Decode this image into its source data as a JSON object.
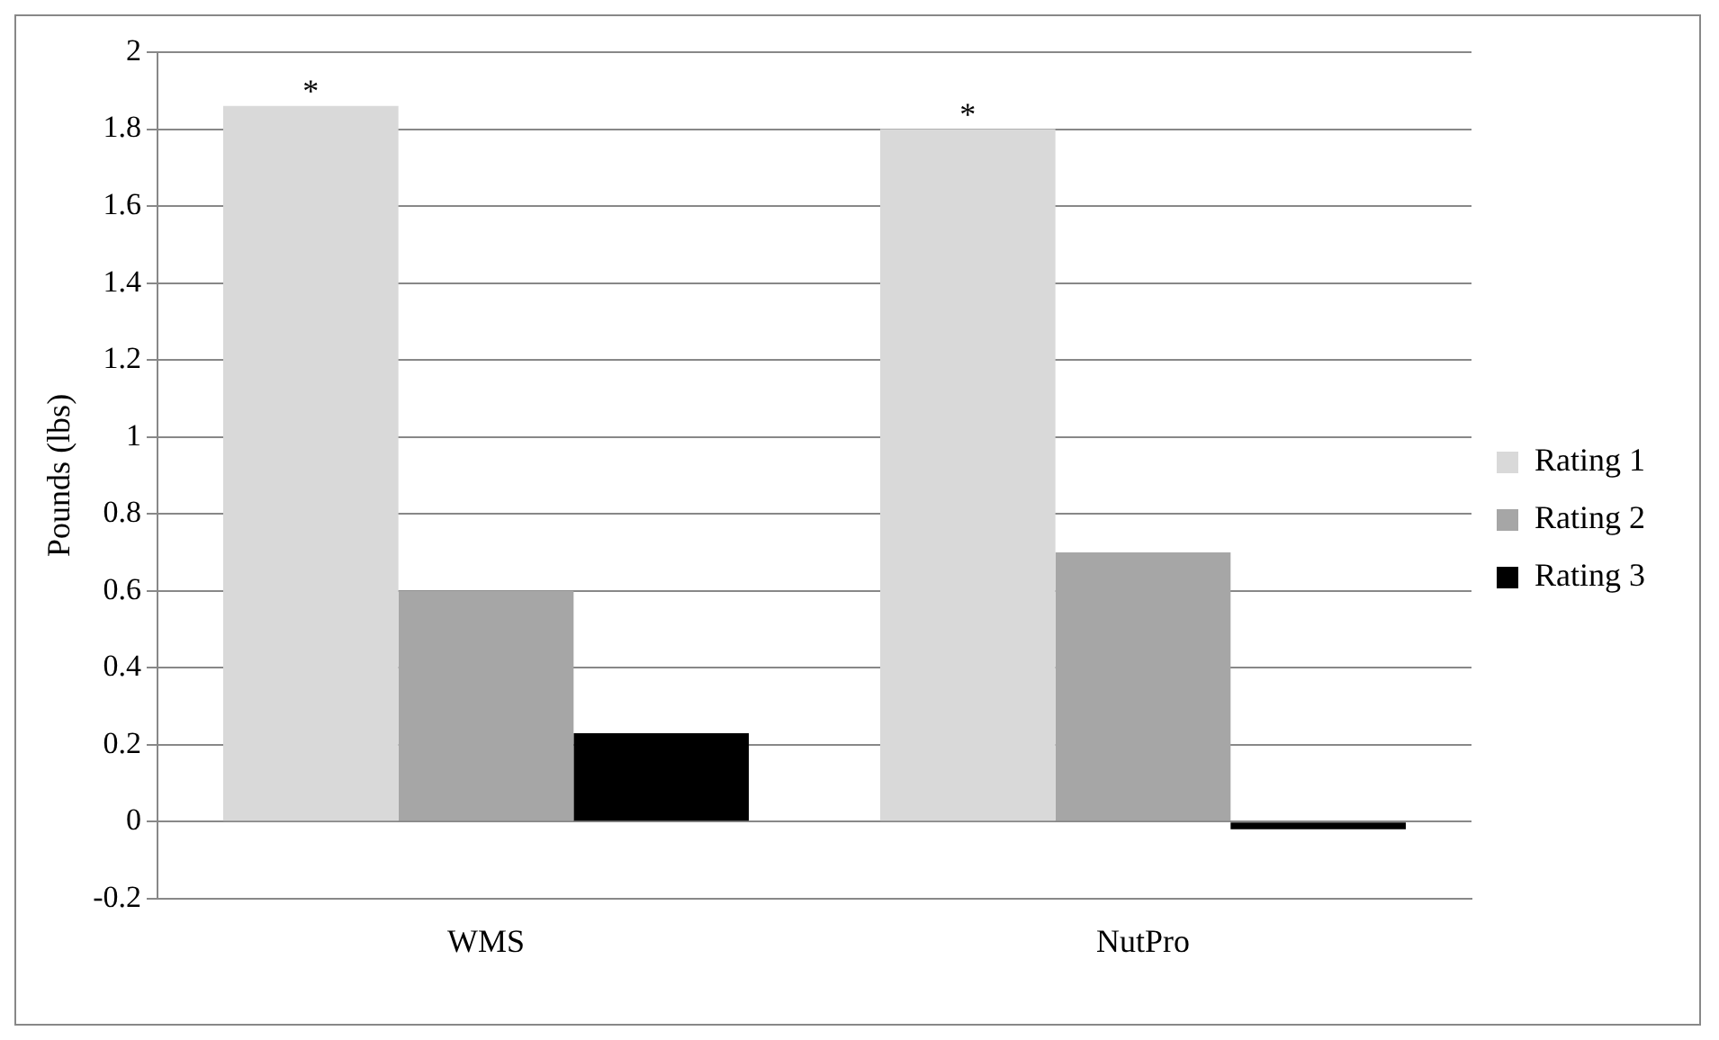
{
  "chart_data": {
    "type": "bar",
    "ylabel": "Pounds (lbs)",
    "categories": [
      "WMS",
      "NutPro"
    ],
    "series": [
      {
        "name": "Rating 1",
        "color": "#d9d9d9",
        "values": [
          1.86,
          1.8
        ]
      },
      {
        "name": "Rating 2",
        "color": "#a6a6a6",
        "values": [
          0.6,
          0.7
        ]
      },
      {
        "name": "Rating 3",
        "color": "#000000",
        "values": [
          0.23,
          -0.02
        ]
      }
    ],
    "ylim": [
      -0.2,
      2
    ],
    "yticks": [
      -0.2,
      0,
      0.2,
      0.4,
      0.6,
      0.8,
      1,
      1.2,
      1.4,
      1.6,
      1.8,
      2
    ],
    "grid": "y",
    "legend": "right",
    "annotations": [
      "*",
      "*"
    ]
  }
}
